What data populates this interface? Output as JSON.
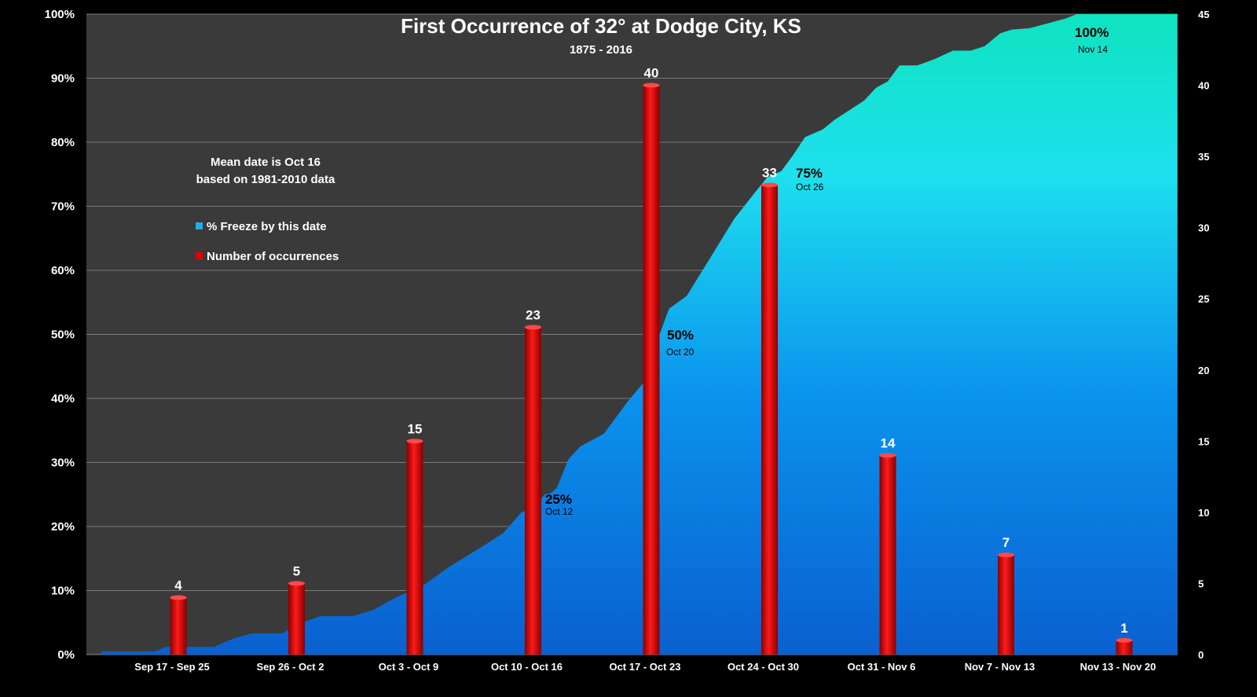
{
  "chart_data": {
    "type": "bar",
    "title": "First Occurrence of 32° at Dodge City, KS",
    "subtitle": "1875 - 2016",
    "note_lines": [
      "Mean date is Oct 16",
      "based on 1981-2010 data"
    ],
    "categories": [
      "Sep 17 - Sep 25",
      "Sep 26 - Oct 2",
      "Oct 3  - Oct 9",
      "Oct 10 - Oct 16",
      "Oct 17 - Oct 23",
      "Oct 24 - Oct 30",
      "Oct 31 - Nov 6",
      "Nov 7 - Nov 13",
      "Nov 13 - Nov 20"
    ],
    "series": [
      {
        "name": "Number of occurrences",
        "axis": "right",
        "type": "bar",
        "color": "#e00000",
        "values": [
          4,
          5,
          15,
          23,
          40,
          33,
          14,
          7,
          1
        ]
      },
      {
        "name": "% Freeze by this date",
        "axis": "left",
        "type": "area",
        "color_top": "#0fe3c0",
        "color_bottom": "#0a5fd0",
        "x_units": "category index",
        "points": [
          [
            -0.65,
            0.5
          ],
          [
            -0.4,
            0.5
          ],
          [
            -0.2,
            0.5
          ],
          [
            -0.1,
            1.2
          ],
          [
            0.1,
            1.2
          ],
          [
            0.3,
            1.2
          ],
          [
            0.48,
            2.6
          ],
          [
            0.62,
            3.3
          ],
          [
            0.75,
            3.3
          ],
          [
            0.88,
            3.3
          ],
          [
            1.0,
            4.7
          ],
          [
            1.2,
            6.0
          ],
          [
            1.48,
            6.0
          ],
          [
            1.65,
            7.0
          ],
          [
            1.85,
            9.0
          ],
          [
            1.95,
            9.8
          ],
          [
            2.05,
            10.5
          ],
          [
            2.3,
            13.8
          ],
          [
            2.6,
            17.2
          ],
          [
            2.75,
            19.0
          ],
          [
            2.9,
            22.2
          ],
          [
            3.0,
            22.8
          ],
          [
            3.1,
            25.0
          ],
          [
            3.15,
            25.2
          ],
          [
            3.2,
            26.0
          ],
          [
            3.3,
            30.5
          ],
          [
            3.4,
            32.5
          ],
          [
            3.6,
            34.5
          ],
          [
            3.8,
            39.5
          ],
          [
            3.95,
            42.8
          ],
          [
            4.05,
            49.0
          ],
          [
            4.15,
            54.0
          ],
          [
            4.3,
            56.0
          ],
          [
            4.5,
            62.0
          ],
          [
            4.7,
            68.0
          ],
          [
            4.87,
            72.0
          ],
          [
            4.98,
            74.5
          ],
          [
            5.1,
            75.5
          ],
          [
            5.2,
            78.0
          ],
          [
            5.3,
            80.8
          ],
          [
            5.45,
            82.0
          ],
          [
            5.55,
            83.5
          ],
          [
            5.8,
            86.5
          ],
          [
            5.9,
            88.5
          ],
          [
            6.0,
            89.5
          ],
          [
            6.1,
            92.0
          ],
          [
            6.25,
            92.0
          ],
          [
            6.4,
            93.0
          ],
          [
            6.55,
            94.3
          ],
          [
            6.7,
            94.3
          ],
          [
            6.82,
            95.0
          ],
          [
            6.95,
            97.0
          ],
          [
            7.05,
            97.6
          ],
          [
            7.2,
            97.8
          ],
          [
            7.5,
            99.3
          ],
          [
            7.6,
            100.0
          ],
          [
            8.45,
            100.0
          ]
        ]
      }
    ],
    "y_left": {
      "lim": [
        0,
        100
      ],
      "ticks": [
        "0%",
        "10%",
        "20%",
        "30%",
        "40%",
        "50%",
        "60%",
        "70%",
        "80%",
        "90%",
        "100%"
      ]
    },
    "y_right": {
      "lim": [
        0,
        45
      ],
      "ticks": [
        "0",
        "5",
        "10",
        "15",
        "20",
        "25",
        "30",
        "35",
        "40",
        "45"
      ]
    },
    "grid": true,
    "legend_placement": "upper-left",
    "annotations": [
      {
        "pct": "25%",
        "date": "Oct 12"
      },
      {
        "pct": "50%",
        "date": "Oct 20"
      },
      {
        "pct": "75%",
        "date": "Oct 26"
      },
      {
        "pct": "100%",
        "date": "Nov 14"
      }
    ],
    "plot_background": "#3a3a3a"
  }
}
